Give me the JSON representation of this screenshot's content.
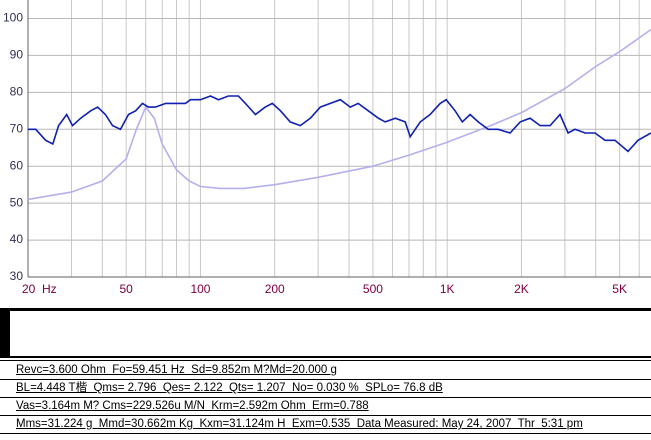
{
  "chart_data": {
    "type": "line",
    "xlim": [
      20,
      6700
    ],
    "ylim": [
      30,
      105
    ],
    "log_x": true,
    "grid": true,
    "xticks": [
      {
        "value": 20,
        "label": "20  Hz"
      },
      50,
      100,
      200,
      500,
      {
        "value": 1000,
        "label": "1K"
      },
      {
        "value": 2000,
        "label": "2K"
      },
      {
        "value": 5000,
        "label": "5K"
      }
    ],
    "xgrid": [
      20,
      30,
      40,
      50,
      60,
      70,
      80,
      90,
      100,
      200,
      300,
      400,
      500,
      600,
      700,
      800,
      900,
      1000,
      2000,
      3000,
      4000,
      5000,
      6000
    ],
    "yticks": [
      30,
      40,
      50,
      60,
      70,
      80,
      90,
      100
    ],
    "series": [
      {
        "color": "#1020b0",
        "x": [
          20,
          21.5,
          23.6,
          25.2,
          26.6,
          28.7,
          30.3,
          32.7,
          35.9,
          38.3,
          41.2,
          44,
          47.4,
          51.1,
          54.6,
          58.2,
          61.5,
          65.7,
          72.2,
          79.2,
          86.9,
          91.1,
          100,
          109.8,
          118.3,
          129.8,
          142.5,
          152.1,
          167,
          183,
          195.5,
          211,
          231,
          254,
          279,
          306,
          336,
          369,
          405,
          436,
          479,
          526,
          561,
          616,
          676,
          708,
          778,
          853,
          937,
          991,
          1077,
          1151,
          1239,
          1336,
          1466,
          1609,
          1799,
          1976,
          2168,
          2381,
          2612,
          2866,
          3090,
          3296,
          3622,
          3973,
          4364,
          4788,
          5407,
          5933,
          6700
        ],
        "values": [
          70,
          70,
          67,
          66,
          71,
          74,
          71,
          73,
          75,
          76,
          74,
          71,
          70,
          74,
          75,
          77,
          76,
          76,
          77,
          77,
          77,
          78,
          78,
          79,
          78,
          79,
          79,
          77,
          74,
          76,
          77,
          75,
          72,
          71,
          73,
          76,
          77,
          78,
          76,
          77,
          75,
          73,
          72,
          73,
          72,
          68,
          72,
          74,
          77,
          78,
          75,
          72,
          74,
          72,
          70,
          70,
          69,
          72,
          73,
          71,
          71,
          74,
          69,
          70,
          69,
          69,
          67,
          67,
          64,
          67,
          69
        ]
      },
      {
        "color": "#b4b0ec",
        "x": [
          20,
          30,
          40,
          50,
          55,
          60,
          65,
          70,
          80,
          90,
          100,
          120,
          150,
          200,
          300,
          500,
          700,
          1000,
          1500,
          2000,
          3000,
          4000,
          5000,
          6700
        ],
        "values": [
          51,
          53,
          56,
          62,
          70,
          76,
          73,
          66,
          59,
          56,
          54.5,
          54,
          54,
          55,
          57,
          60,
          63,
          66.5,
          71,
          74.5,
          81,
          87,
          91,
          97
        ]
      }
    ]
  },
  "parameters": [
    "Revc=3.600 Ohm  Fo=59.451 Hz  Sd=9.852m M?Md=20.000 g",
    "BL=4.448 T楷  Qms= 2.796  Qes= 2.122  Qts= 1.207  No= 0.030 %  SPLo= 76.8 dB",
    "Vas=3.164m M? Cms=229.526u M/N  Krm=2.592m Ohm  Erm=0.788",
    "Mms=31.224 g  Mmd=30.662m Kg  Kxm=31.124m H  Exm=0.535  Data Measured: May 24, 2007  Thr  5:31 pm"
  ]
}
